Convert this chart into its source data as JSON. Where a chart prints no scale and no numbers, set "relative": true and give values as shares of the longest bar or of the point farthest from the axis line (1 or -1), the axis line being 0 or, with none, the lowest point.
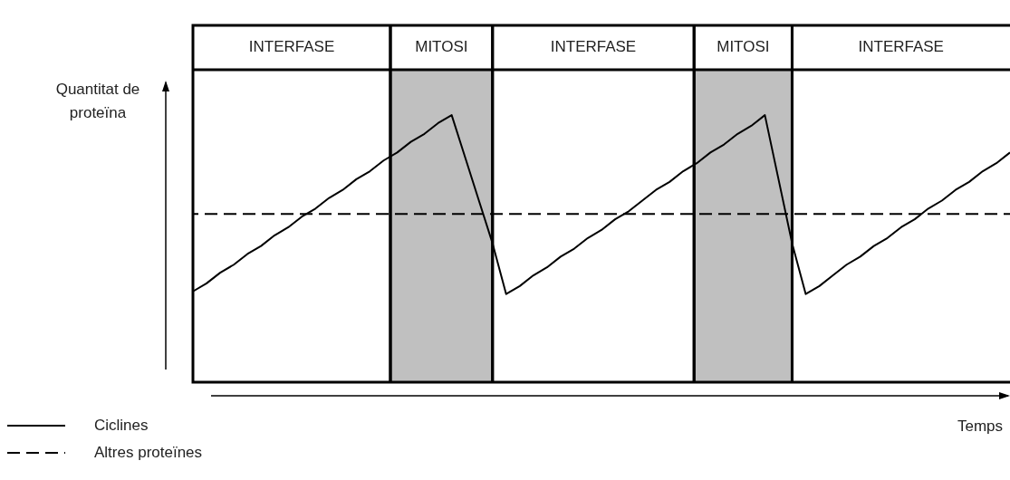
{
  "chart_data": {
    "type": "line",
    "relative": true,
    "xlabel": "Temps",
    "ylabel": "Quantitat de proteïna",
    "tick_labels": false,
    "legend": "bottom left",
    "marker": "none",
    "categories": [
      null,
      null,
      null,
      null,
      null,
      null,
      null,
      null,
      null,
      null,
      null,
      null,
      null,
      null,
      null,
      null,
      null,
      null,
      null,
      null,
      null,
      null,
      null,
      null,
      null,
      null,
      null,
      null,
      null,
      null,
      null,
      null,
      null,
      null,
      null,
      null,
      null,
      null,
      null,
      null,
      null,
      null,
      null,
      null,
      null,
      null,
      null,
      null,
      null,
      null,
      null,
      null,
      null,
      null,
      null,
      null,
      null,
      null,
      null,
      null,
      null
    ],
    "series": [
      {
        "name": "Ciclines",
        "color": "#000000",
        "line_style": "solid",
        "values": [
          0.34,
          0.37,
          0.41,
          0.44,
          0.48,
          0.51,
          0.55,
          0.58,
          0.62,
          0.65,
          0.69,
          0.72,
          0.76,
          0.79,
          0.83,
          0.86,
          0.9,
          0.93,
          0.97,
          1,
          0.84,
          0.68,
          0.52,
          0.33,
          0.36,
          0.4,
          0.43,
          0.47,
          0.5,
          0.54,
          0.57,
          0.61,
          0.64,
          0.68,
          0.72,
          0.75,
          0.79,
          0.82,
          0.86,
          0.89,
          0.93,
          0.96,
          1,
          0.76,
          0.52,
          0.33,
          0.36,
          0.4,
          0.44,
          0.47,
          0.51,
          0.54,
          0.58,
          0.61,
          0.65,
          0.68,
          0.72,
          0.75,
          0.79,
          0.82,
          0.86
        ]
      },
      {
        "name": "Altres proteïnes",
        "color": "#000000",
        "line_style": "dashed",
        "values": [
          0.63,
          0.63,
          0.63,
          0.63,
          0.63,
          0.63,
          0.63,
          0.63,
          0.63,
          0.63,
          0.63,
          0.63,
          0.63,
          0.63,
          0.63,
          0.63,
          0.63,
          0.63,
          0.63,
          0.63,
          0.63,
          0.63,
          0.63,
          0.63,
          0.63,
          0.63,
          0.63,
          0.63,
          0.63,
          0.63,
          0.63,
          0.63,
          0.63,
          0.63,
          0.63,
          0.63,
          0.63,
          0.63,
          0.63,
          0.63,
          0.63,
          0.63,
          0.63,
          0.63,
          0.63,
          0.63,
          0.63,
          0.63,
          0.63,
          0.63,
          0.63,
          0.63,
          0.63,
          0.63,
          0.63,
          0.63,
          0.63,
          0.63,
          0.63,
          0.63,
          0.63
        ]
      }
    ],
    "annotations": [
      "INTERFASE",
      "MITOSI",
      "INTERFASE",
      "MITOSI",
      "INTERFASE"
    ]
  }
}
